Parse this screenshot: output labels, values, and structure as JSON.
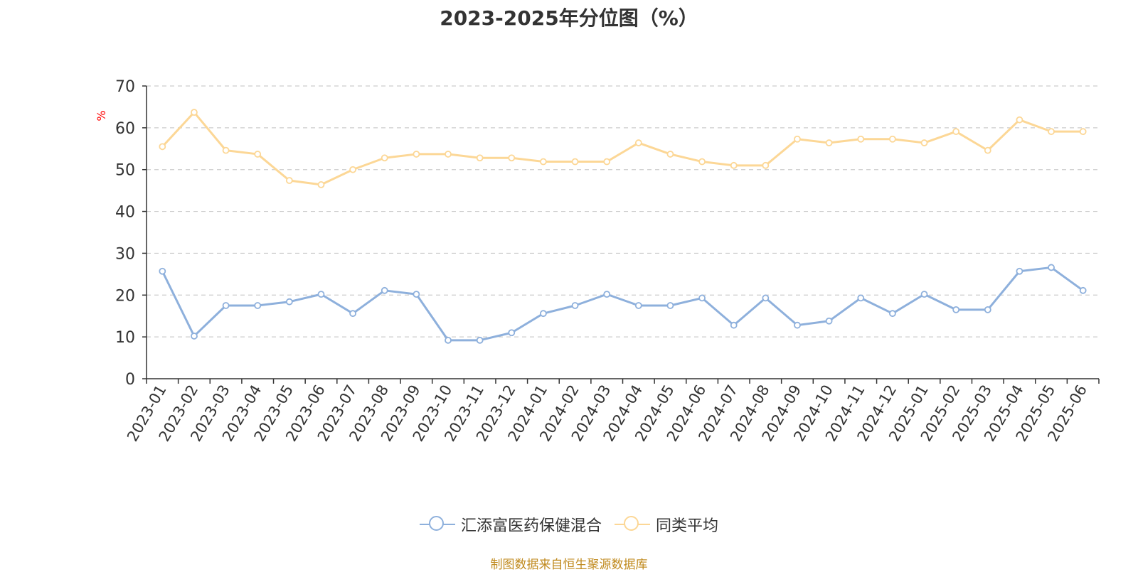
{
  "title": "2023-2025年分位图（%）",
  "source_note": "制图数据来自恒生聚源数据库",
  "chart_data": {
    "type": "line",
    "title": "2023-2025年分位图（%）",
    "ylabel": "%",
    "xlabel": "",
    "ylim": [
      0,
      70
    ],
    "yticks": [
      0,
      10,
      20,
      30,
      40,
      50,
      60,
      70
    ],
    "grid": true,
    "legend_position": "bottom",
    "categories": [
      "2023-01",
      "2023-02",
      "2023-03",
      "2023-04",
      "2023-05",
      "2023-06",
      "2023-07",
      "2023-08",
      "2023-09",
      "2023-10",
      "2023-11",
      "2023-12",
      "2024-01",
      "2024-02",
      "2024-03",
      "2024-04",
      "2024-05",
      "2024-06",
      "2024-07",
      "2024-08",
      "2024-09",
      "2024-10",
      "2024-11",
      "2024-12",
      "2025-01",
      "2025-02",
      "2025-03",
      "2025-04",
      "2025-05",
      "2025-06"
    ],
    "series": [
      {
        "name": "汇添富医药保健混合",
        "color": "#8eb0dc",
        "values": [
          25.7,
          10.2,
          17.5,
          17.5,
          18.4,
          20.2,
          15.6,
          21.1,
          20.2,
          9.2,
          9.2,
          11.0,
          15.6,
          17.5,
          20.2,
          17.5,
          17.5,
          19.3,
          12.8,
          19.3,
          12.8,
          13.8,
          19.3,
          15.6,
          20.2,
          16.5,
          16.5,
          25.7,
          26.6,
          21.1
        ]
      },
      {
        "name": "同类平均",
        "color": "#fcd796",
        "values": [
          55.5,
          63.7,
          54.6,
          53.7,
          47.4,
          46.4,
          50.0,
          52.8,
          53.7,
          53.7,
          52.8,
          52.8,
          51.9,
          51.9,
          51.9,
          56.4,
          53.7,
          51.9,
          51.0,
          51.0,
          57.3,
          56.4,
          57.3,
          57.3,
          56.4,
          59.1,
          54.6,
          61.9,
          59.1,
          59.1
        ]
      }
    ]
  }
}
